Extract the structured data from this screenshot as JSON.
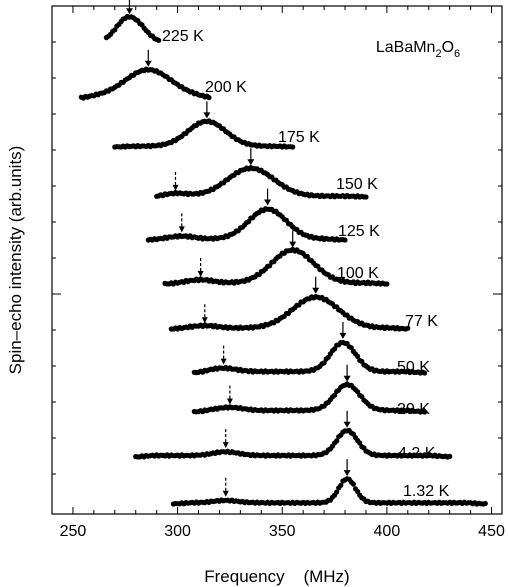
{
  "chart_data": {
    "type": "scatter",
    "title": "",
    "xlabel": "Frequency    (MHz)",
    "ylabel": "Spin–echo intensity  (arb.units)",
    "xlim": [
      240,
      455
    ],
    "xticks": [
      250,
      300,
      350,
      400,
      450
    ],
    "yticks_labeled": false,
    "sample": {
      "base": "LaBaMn",
      "sub1": "2",
      "mid": "O",
      "sub2": "6"
    },
    "series": [
      {
        "name": "225 K",
        "x_start": 266,
        "x_end": 291,
        "peak_x": 277,
        "peak_width": 6,
        "peak_amp": 1.0,
        "sat_x": null,
        "sat_amp": 0,
        "bg": 0.15,
        "arrow_x": 277,
        "sat_arrow_x": null
      },
      {
        "name": "200 K",
        "x_start": 254,
        "x_end": 315,
        "peak_x": 286,
        "peak_width": 11,
        "peak_amp": 1.0,
        "sat_x": null,
        "sat_amp": 0,
        "bg": 0.05,
        "arrow_x": 286,
        "sat_arrow_x": null
      },
      {
        "name": "175 K",
        "x_start": 270,
        "x_end": 355,
        "peak_x": 314,
        "peak_width": 9,
        "peak_amp": 1.0,
        "sat_x": null,
        "sat_amp": 0,
        "bg": 0.03,
        "arrow_x": 314,
        "sat_arrow_x": null
      },
      {
        "name": "150 K",
        "x_start": 290,
        "x_end": 390,
        "peak_x": 335,
        "peak_width": 11,
        "peak_amp": 1.0,
        "sat_x": 299,
        "sat_amp": 0.1,
        "bg": 0.03,
        "arrow_x": 335,
        "sat_arrow_x": 299
      },
      {
        "name": "125 K",
        "x_start": 286,
        "x_end": 380,
        "peak_x": 343,
        "peak_width": 9,
        "peak_amp": 1.0,
        "sat_x": 302,
        "sat_amp": 0.1,
        "bg": 0.03,
        "arrow_x": 343,
        "sat_arrow_x": 302
      },
      {
        "name": "100 K",
        "x_start": 294,
        "x_end": 400,
        "peak_x": 355,
        "peak_width": 10,
        "peak_amp": 1.0,
        "sat_x": 311,
        "sat_amp": 0.1,
        "bg": 0.03,
        "arrow_x": 355,
        "sat_arrow_x": 311
      },
      {
        "name": "77 K",
        "x_start": 297,
        "x_end": 410,
        "peak_x": 366,
        "peak_width": 11,
        "peak_amp": 1.0,
        "sat_x": 313,
        "sat_amp": 0.08,
        "bg": 0.03,
        "arrow_x": 366,
        "sat_arrow_x": 313
      },
      {
        "name": "50 K",
        "x_start": 308,
        "x_end": 418,
        "peak_x": 379,
        "peak_width": 6,
        "peak_amp": 1.0,
        "sat_x": 322,
        "sat_amp": 0.12,
        "bg": 0.05,
        "arrow_x": 379,
        "sat_arrow_x": 322
      },
      {
        "name": "20 K",
        "x_start": 308,
        "x_end": 418,
        "peak_x": 381,
        "peak_width": 6,
        "peak_amp": 1.0,
        "sat_x": 325,
        "sat_amp": 0.12,
        "bg": 0.06,
        "arrow_x": 381,
        "sat_arrow_x": 325
      },
      {
        "name": "4.2 K",
        "x_start": 280,
        "x_end": 430,
        "peak_x": 381,
        "peak_width": 5,
        "peak_amp": 1.0,
        "sat_x": 323,
        "sat_amp": 0.15,
        "bg": 0.06,
        "arrow_x": 381,
        "sat_arrow_x": 323
      },
      {
        "name": "1.32 K",
        "x_start": 298,
        "x_end": 447,
        "peak_x": 381,
        "peak_width": 4,
        "peak_amp": 1.0,
        "sat_x": 323,
        "sat_amp": 0.1,
        "bg": 0.05,
        "arrow_x": 381,
        "sat_arrow_x": 323
      }
    ]
  }
}
